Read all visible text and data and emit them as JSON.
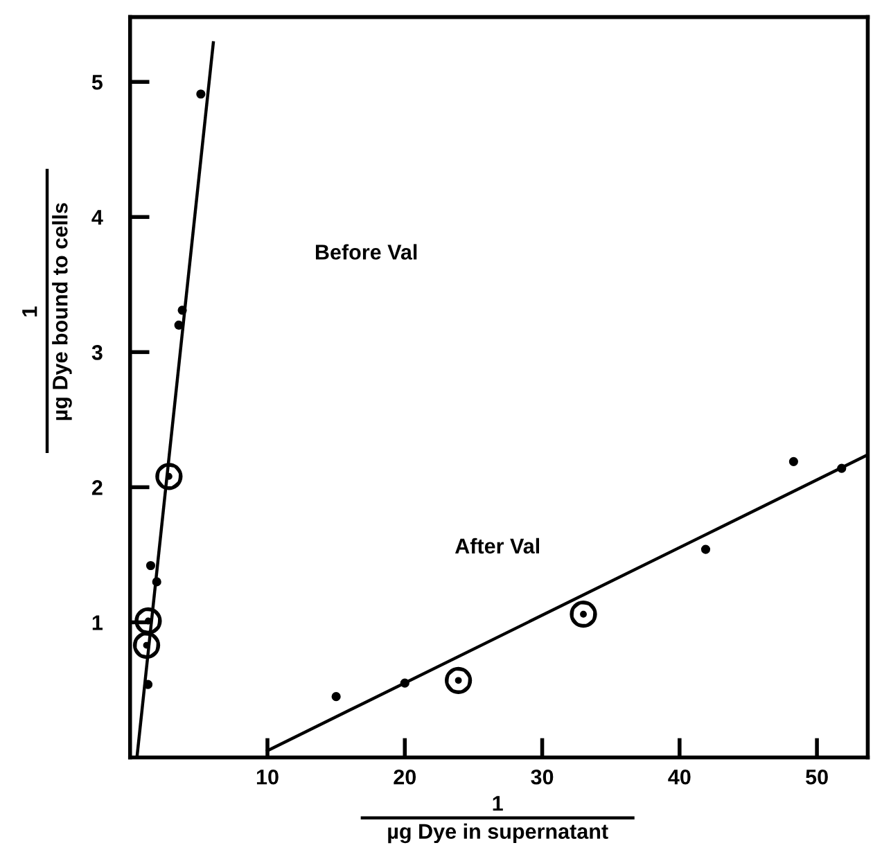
{
  "chart_data": {
    "type": "scatter",
    "xlabel": "µg Dye in supernatant",
    "ylabel": "µg Dye bound to cells",
    "xlim": [
      0,
      53.7
    ],
    "ylim": [
      0,
      5.48
    ],
    "xticks": [
      10,
      20,
      30,
      40,
      50
    ],
    "yticks": [
      1,
      2,
      3,
      4,
      5
    ],
    "grid": false,
    "legend": false,
    "series": [
      {
        "marker": "circle",
        "color": "#000000",
        "x": [
          5.15,
          3.8,
          3.55,
          1.5,
          1.94,
          1.3
        ],
        "values": [
          4.91,
          3.31,
          3.2,
          1.42,
          1.3,
          0.54
        ]
      },
      {
        "marker": "circle",
        "color": "#000000",
        "x": [
          2.83,
          1.32,
          1.2
        ],
        "values": [
          2.08,
          1.01,
          0.83
        ],
        "sizes": [
          1,
          1,
          1
        ]
      },
      {
        "type": "line",
        "marker": "none",
        "color": "#000000",
        "x": [
          0.5,
          6.06
        ],
        "values": [
          0,
          5.29
        ]
      },
      {
        "marker": "circle",
        "color": "#000000",
        "x": [
          15,
          20,
          41.9,
          48.3,
          51.8
        ],
        "values": [
          0.45,
          0.55,
          1.54,
          2.19,
          2.14
        ]
      },
      {
        "marker": "circle",
        "color": "#000000",
        "x": [
          23.9,
          33
        ],
        "values": [
          0.57,
          1.06
        ],
        "sizes": [
          1,
          1
        ]
      },
      {
        "type": "line",
        "marker": "none",
        "color": "#000000",
        "x": [
          10,
          53.7
        ],
        "values": [
          0.05,
          2.24
        ]
      }
    ],
    "annotations": [
      "Before Val",
      "After Val",
      "1",
      "1"
    ]
  }
}
